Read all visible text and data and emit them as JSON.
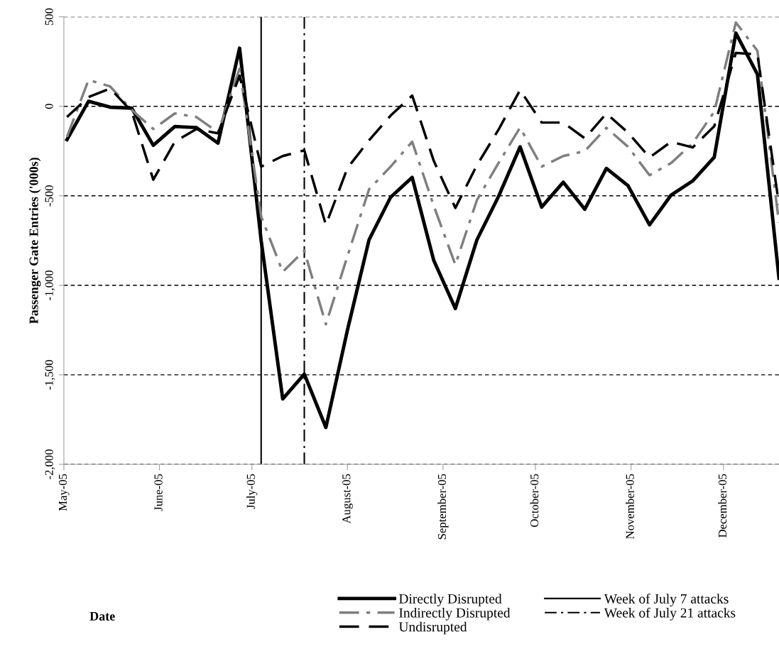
{
  "chart_data": {
    "type": "line",
    "annotations": [
      "Date"
    ],
    "ylabel": "Passenger Gate Entries ('000s)",
    "x": [
      "2005-05-02",
      "2005-05-09",
      "2005-05-16",
      "2005-05-23",
      "2005-05-30",
      "2005-06-06",
      "2005-06-13",
      "2005-06-20",
      "2005-06-27",
      "2005-07-04",
      "2005-07-11",
      "2005-07-18",
      "2005-07-25",
      "2005-08-01",
      "2005-08-08",
      "2005-08-15",
      "2005-08-22",
      "2005-08-29",
      "2005-09-05",
      "2005-09-12",
      "2005-09-19",
      "2005-09-26",
      "2005-10-03",
      "2005-10-10",
      "2005-10-17",
      "2005-10-24",
      "2005-10-31",
      "2005-11-07",
      "2005-11-14",
      "2005-11-21",
      "2005-11-28",
      "2005-12-05",
      "2005-12-12",
      "2005-12-19"
    ],
    "series": [
      {
        "name": "Directly Disrupted",
        "color": "#000000",
        "line_style": "solid",
        "values": [
          -186,
          28,
          -5,
          -10,
          -218,
          -113,
          -119,
          -206,
          325,
          -750,
          -1635,
          -1496,
          -1794,
          -1250,
          -746,
          -508,
          -397,
          -861,
          -1130,
          -746,
          -504,
          -226,
          -563,
          -424,
          -575,
          -347,
          -443,
          -662,
          -496,
          -417,
          -284,
          409,
          179,
          -960
        ]
      },
      {
        "name": "Indirectly Disrupted",
        "color": "#7f7f7f",
        "line_style": "dashdot",
        "values": [
          -171,
          147,
          111,
          -20,
          -127,
          -40,
          -60,
          -146,
          210,
          -615,
          -925,
          -806,
          -1218,
          -837,
          -464,
          -337,
          -198,
          -556,
          -885,
          -524,
          -317,
          -119,
          -337,
          -278,
          -250,
          -120,
          -226,
          -385,
          -317,
          -206,
          -30,
          468,
          310,
          -650
        ]
      },
      {
        "name": "Undisrupted",
        "color": "#000000",
        "line_style": "dashed",
        "values": [
          -60,
          52,
          99,
          -28,
          -410,
          -198,
          -127,
          -151,
          171,
          -337,
          -278,
          -246,
          -663,
          -345,
          -190,
          -52,
          60,
          -305,
          -568,
          -329,
          -131,
          91,
          -91,
          -91,
          -179,
          -40,
          -147,
          -286,
          -198,
          -230,
          -111,
          298,
          290,
          -550
        ]
      }
    ],
    "ref_lines": [
      {
        "axis": "x",
        "value": "2005-07-04",
        "label": "Week of July 7 attacks",
        "color": "#000000",
        "line_style": "solid"
      },
      {
        "axis": "x",
        "value": "2005-07-18",
        "label": "Week of July 21 attacks",
        "color": "#000000",
        "line_style": "dashdot"
      }
    ],
    "xlim": [
      "2005-05-01",
      "2005-12-19"
    ],
    "xticks": [
      {
        "value": "2005-05-01",
        "label": "May-05"
      },
      {
        "value": "2005-06-01",
        "label": "June-05"
      },
      {
        "value": "2005-07-01",
        "label": "July-05"
      },
      {
        "value": "2005-08-01",
        "label": "August-05"
      },
      {
        "value": "2005-09-01",
        "label": "September-05"
      },
      {
        "value": "2005-10-01",
        "label": "October-05"
      },
      {
        "value": "2005-11-01",
        "label": "November-05"
      },
      {
        "value": "2005-12-01",
        "label": "December-05"
      }
    ],
    "ylim": [
      -2000,
      500
    ],
    "yticks": [
      {
        "value": -2000,
        "label": "-2,000"
      },
      {
        "value": -1500,
        "label": "-1,500"
      },
      {
        "value": -1000,
        "label": "-1,000"
      },
      {
        "value": -500,
        "label": "-500"
      },
      0,
      500
    ],
    "grid": "y",
    "legend": "bottom",
    "marker": "none"
  }
}
